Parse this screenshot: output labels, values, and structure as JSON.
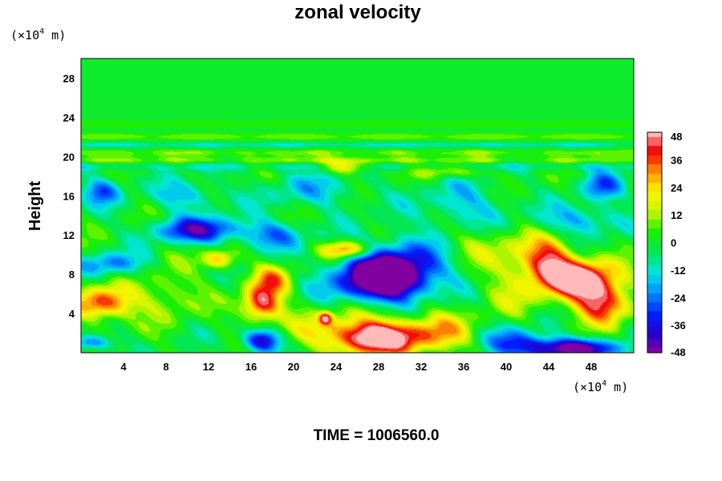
{
  "chart_data": {
    "type": "heatmap",
    "title": "zonal velocity",
    "ylabel": "Height",
    "x_unit": "(×10",
    "y_unit": "(×10",
    "unit_exp": "4",
    "unit_tail": " m)",
    "xlim": [
      0,
      52
    ],
    "ylim": [
      0,
      30
    ],
    "x_ticks": [
      "4",
      "8",
      "12",
      "16",
      "20",
      "24",
      "28",
      "32",
      "36",
      "40",
      "44",
      "48"
    ],
    "y_ticks": [
      "4",
      "8",
      "12",
      "16",
      "20",
      "24",
      "28"
    ],
    "colorbar": {
      "min": -48,
      "max": 48,
      "ticks": [
        "48",
        "36",
        "24",
        "12",
        "0",
        "-12",
        "-24",
        "-36",
        "-48"
      ]
    },
    "features": [
      {
        "x": 28,
        "y": 1.5,
        "value": 50,
        "sx": 4.0,
        "sy": 1.6
      },
      {
        "x": 25,
        "y": 2.5,
        "value": 18,
        "sx": 6.0,
        "sy": 2.5
      },
      {
        "x": 34,
        "y": 2.0,
        "value": 22,
        "sx": 3.0,
        "sy": 2.0
      },
      {
        "x": 47,
        "y": 7.5,
        "value": 52,
        "sx": 3.5,
        "sy": 2.0
      },
      {
        "x": 44,
        "y": 9.5,
        "value": 34,
        "sx": 2.2,
        "sy": 2.2
      },
      {
        "x": 49,
        "y": 5.0,
        "value": 40,
        "sx": 2.5,
        "sy": 2.0
      },
      {
        "x": 41,
        "y": 8.0,
        "value": 16,
        "sx": 3.0,
        "sy": 4.0
      },
      {
        "x": 29,
        "y": 7.5,
        "value": -52,
        "sx": 3.2,
        "sy": 2.0
      },
      {
        "x": 30,
        "y": 9.0,
        "value": -30,
        "sx": 5.0,
        "sy": 2.8
      },
      {
        "x": 26,
        "y": 7.0,
        "value": -20,
        "sx": 4.0,
        "sy": 2.5
      },
      {
        "x": 46,
        "y": 0.4,
        "value": -52,
        "sx": 4.5,
        "sy": 1.0
      },
      {
        "x": 41,
        "y": 1.2,
        "value": -25,
        "sx": 3.0,
        "sy": 1.5
      },
      {
        "x": 17,
        "y": 5.0,
        "value": 44,
        "sx": 1.8,
        "sy": 1.8
      },
      {
        "x": 18,
        "y": 7.5,
        "value": 26,
        "sx": 1.8,
        "sy": 1.5
      },
      {
        "x": 17,
        "y": 1.2,
        "value": -44,
        "sx": 1.8,
        "sy": 1.2
      },
      {
        "x": 2,
        "y": 5.0,
        "value": 40,
        "sx": 2.8,
        "sy": 1.6
      },
      {
        "x": 1,
        "y": 1.0,
        "value": -28,
        "sx": 2.0,
        "sy": 0.8
      },
      {
        "x": 13,
        "y": 9.5,
        "value": 28,
        "sx": 1.6,
        "sy": 1.0
      },
      {
        "x": 23,
        "y": 3.5,
        "value": 36,
        "sx": 0.6,
        "sy": 0.6
      },
      {
        "x": 11,
        "y": 12.5,
        "value": -38,
        "sx": 4.0,
        "sy": 1.3
      },
      {
        "x": 18,
        "y": 12.0,
        "value": -22,
        "sx": 3.0,
        "sy": 1.5
      },
      {
        "x": 2,
        "y": 16.5,
        "value": -26,
        "sx": 1.8,
        "sy": 1.4
      },
      {
        "x": 10,
        "y": 16.0,
        "value": -18,
        "sx": 3.0,
        "sy": 1.5
      },
      {
        "x": 25,
        "y": 10.5,
        "value": 38,
        "sx": 2.2,
        "sy": 0.9
      },
      {
        "x": 3,
        "y": 9.0,
        "value": -24,
        "sx": 3.0,
        "sy": 1.2
      },
      {
        "x": 47,
        "y": 13.5,
        "value": -20,
        "sx": 4.0,
        "sy": 1.5
      },
      {
        "x": 36,
        "y": 15.0,
        "value": -16,
        "sx": 4.0,
        "sy": 2.5
      },
      {
        "x": 49,
        "y": 17.0,
        "value": -24,
        "sx": 2.0,
        "sy": 1.5
      },
      {
        "x": 25,
        "y": 19.0,
        "value": 26,
        "sx": 2.5,
        "sy": 0.7
      },
      {
        "x": 35,
        "y": 18.5,
        "value": 18,
        "sx": 3.0,
        "sy": 0.7
      },
      {
        "x": 22,
        "y": 16.5,
        "value": -14,
        "sx": 5.0,
        "sy": 1.8
      },
      {
        "x": 8,
        "y": 6.0,
        "value": 14,
        "sx": 3.0,
        "sy": 2.5
      },
      {
        "x": 37,
        "y": 11.0,
        "value": 12,
        "sx": 3.0,
        "sy": 2.0
      }
    ],
    "bands": [
      {
        "y": 22.0,
        "value": 10,
        "sy": 0.45
      },
      {
        "y": 21.2,
        "value": -12,
        "sy": 0.4
      },
      {
        "y": 20.4,
        "value": 10,
        "sy": 0.4
      },
      {
        "y": 19.6,
        "value": 12,
        "sy": 0.35
      },
      {
        "y": 19.0,
        "value": -10,
        "sy": 0.5
      },
      {
        "y": 23.3,
        "value": 6,
        "sy": 0.4
      }
    ],
    "time_text": "TIME = 1006560.0"
  }
}
